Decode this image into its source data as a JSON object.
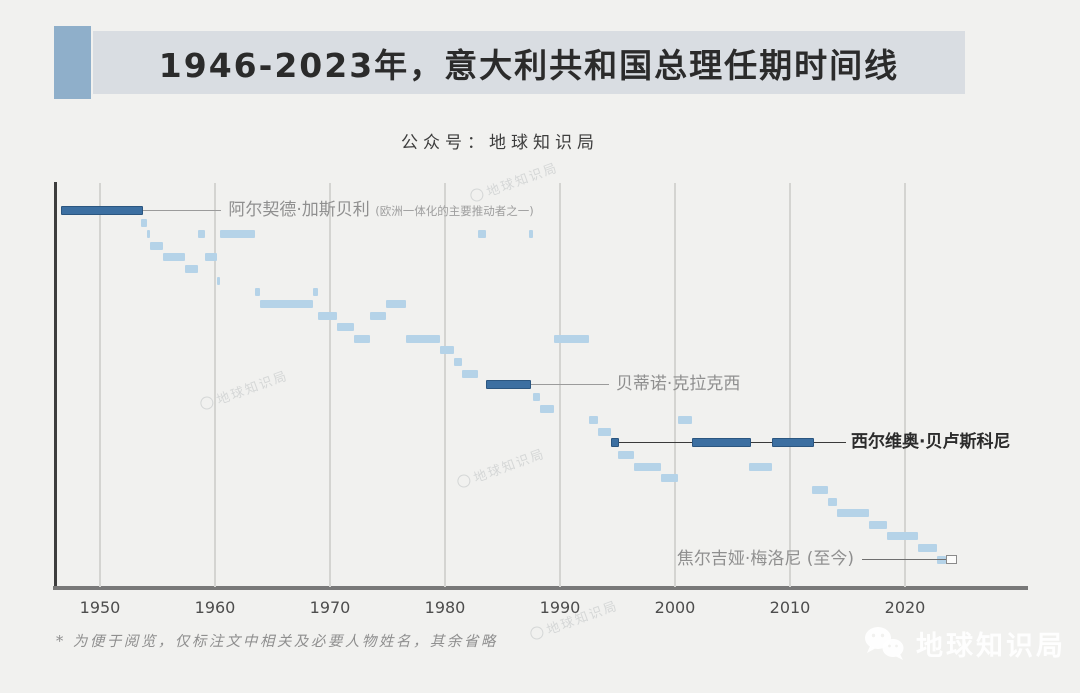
{
  "header": {
    "title": "1946-2023年，意大利共和国总理任期时间线",
    "subtitle": "公众号：地球知识局"
  },
  "footnote": "*  为便于阅览，仅标注文中相关及必要人物姓名，其余省略",
  "watermark": {
    "brand": "地球知识局",
    "stamp": "地球知识局"
  },
  "colors": {
    "background": "#f1f1ef",
    "title_bar": "#d9dde2",
    "accent": "#8fafca",
    "bar_light": "#b5d3e8",
    "bar_dark": "#3c6fa1",
    "bar_dark_border": "#2b5680",
    "gridline": "#d4d4d1"
  },
  "chart_data": {
    "type": "gantt",
    "title": "1946-2023年，意大利共和国总理任期时间线",
    "xlabel": "",
    "ylabel": "",
    "x_axis": {
      "ticks": [
        1950,
        1960,
        1970,
        1980,
        1990,
        2000,
        2010,
        2020
      ],
      "range": [
        1946.2,
        2030.5
      ],
      "grid": true
    },
    "legend": "none",
    "rows": [
      {
        "terms": [
          [
            1946.6,
            1953.6
          ]
        ],
        "style": "dark",
        "label": "阿尔契德·加斯贝利",
        "label_note": "(欧洲一体化的主要推动者之一)"
      },
      {
        "terms": [
          [
            1953.6,
            1954.05
          ]
        ],
        "style": "light"
      },
      {
        "terms": [
          [
            1954.05,
            1954.35
          ],
          [
            1958.5,
            1959.1
          ],
          [
            1960.45,
            1963.45
          ],
          [
            1982.9,
            1983.6
          ],
          [
            1987.3,
            1987.65
          ]
        ],
        "style": "light"
      },
      {
        "terms": [
          [
            1954.35,
            1955.5
          ]
        ],
        "style": "light"
      },
      {
        "terms": [
          [
            1955.5,
            1957.4
          ],
          [
            1959.1,
            1960.2
          ]
        ],
        "style": "light"
      },
      {
        "terms": [
          [
            1957.4,
            1958.5
          ]
        ],
        "style": "light"
      },
      {
        "terms": [
          [
            1960.2,
            1960.45
          ]
        ],
        "style": "light"
      },
      {
        "terms": [
          [
            1963.45,
            1963.95
          ],
          [
            1968.5,
            1968.95
          ]
        ],
        "style": "light"
      },
      {
        "terms": [
          [
            1963.95,
            1968.5
          ],
          [
            1974.9,
            1976.6
          ]
        ],
        "style": "light"
      },
      {
        "terms": [
          [
            1968.95,
            1970.6
          ],
          [
            1973.5,
            1974.9
          ]
        ],
        "style": "light"
      },
      {
        "terms": [
          [
            1970.6,
            1972.1
          ]
        ],
        "style": "light"
      },
      {
        "terms": [
          [
            1972.1,
            1973.5
          ],
          [
            1976.6,
            1979.6
          ],
          [
            1989.5,
            1992.5
          ]
        ],
        "style": "light"
      },
      {
        "terms": [
          [
            1979.6,
            1980.8
          ]
        ],
        "style": "light"
      },
      {
        "terms": [
          [
            1980.8,
            1981.5
          ]
        ],
        "style": "light"
      },
      {
        "terms": [
          [
            1981.5,
            1982.9
          ]
        ],
        "style": "light"
      },
      {
        "terms": [
          [
            1983.6,
            1987.3
          ]
        ],
        "style": "dark",
        "label": "贝蒂诺·克拉克西"
      },
      {
        "terms": [
          [
            1987.65,
            1988.3
          ]
        ],
        "style": "light"
      },
      {
        "terms": [
          [
            1988.3,
            1989.5
          ]
        ],
        "style": "light"
      },
      {
        "terms": [
          [
            1992.5,
            1993.3
          ],
          [
            2000.3,
            2001.5
          ]
        ],
        "style": "light"
      },
      {
        "terms": [
          [
            1993.3,
            1994.4
          ]
        ],
        "style": "light"
      },
      {
        "terms": [
          [
            1994.4,
            1995.0
          ],
          [
            2001.5,
            2006.4
          ],
          [
            2008.4,
            2011.9
          ]
        ],
        "style": "dark",
        "label": "西尔维奥·贝卢斯科尼"
      },
      {
        "terms": [
          [
            1995.0,
            1996.4
          ]
        ],
        "style": "light"
      },
      {
        "terms": [
          [
            1996.4,
            1998.8
          ],
          [
            2006.4,
            2008.4
          ]
        ],
        "style": "light"
      },
      {
        "terms": [
          [
            1998.8,
            2000.3
          ]
        ],
        "style": "light"
      },
      {
        "terms": [
          [
            2011.9,
            2013.3
          ]
        ],
        "style": "light"
      },
      {
        "terms": [
          [
            2013.3,
            2014.1
          ]
        ],
        "style": "light"
      },
      {
        "terms": [
          [
            2014.1,
            2016.9
          ]
        ],
        "style": "light"
      },
      {
        "terms": [
          [
            2016.9,
            2018.4
          ]
        ],
        "style": "light"
      },
      {
        "terms": [
          [
            2018.4,
            2021.1
          ]
        ],
        "style": "light"
      },
      {
        "terms": [
          [
            2021.1,
            2022.8
          ]
        ],
        "style": "light"
      },
      {
        "terms": [
          [
            2022.8,
            2023.6
          ]
        ],
        "style": "light",
        "label": "焦尔吉娅·梅洛尼 (至今)",
        "label_side": "left",
        "marker": "open-square"
      }
    ]
  }
}
